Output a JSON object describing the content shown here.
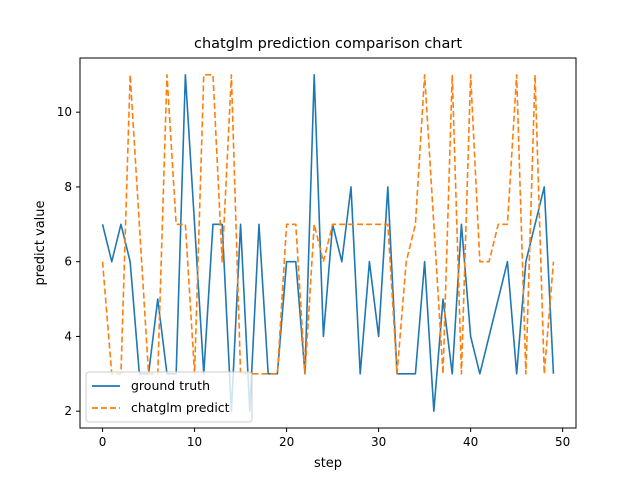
{
  "chart_data": {
    "type": "line",
    "title": "chatglm prediction comparison chart",
    "xlabel": "step",
    "ylabel": "predict value",
    "xlim": [
      -2.45,
      51.45
    ],
    "ylim": [
      1.55,
      11.45
    ],
    "xticks": [
      0,
      10,
      20,
      30,
      40,
      50
    ],
    "yticks": [
      2,
      4,
      6,
      8,
      10
    ],
    "grid": false,
    "legend_placement": "lower-left",
    "x": [
      0,
      1,
      2,
      3,
      4,
      5,
      6,
      7,
      8,
      9,
      10,
      11,
      12,
      13,
      14,
      15,
      16,
      17,
      18,
      19,
      20,
      21,
      22,
      23,
      24,
      25,
      26,
      27,
      28,
      29,
      30,
      31,
      32,
      33,
      34,
      35,
      36,
      37,
      38,
      39,
      40,
      41,
      42,
      43,
      44,
      45,
      46,
      47,
      48,
      49
    ],
    "series": [
      {
        "name": "ground truth",
        "color": "#1f77b4",
        "style": "solid",
        "values": [
          7,
          6,
          7,
          6,
          3,
          3,
          5,
          3,
          3,
          11,
          7,
          3,
          7,
          7,
          2,
          7,
          2,
          7,
          3,
          3,
          6,
          6,
          3,
          11,
          4,
          7,
          6,
          8,
          3,
          6,
          4,
          8,
          3,
          3,
          3,
          6,
          2,
          5,
          3,
          7,
          4,
          3,
          4,
          5,
          6,
          3,
          6,
          7,
          8,
          3
        ]
      },
      {
        "name": "chatglm predict",
        "color": "#ff7f0e",
        "style": "dashed",
        "values": [
          6,
          3,
          3,
          11,
          7,
          3,
          3,
          11,
          7,
          7,
          3,
          11,
          11,
          6,
          11,
          3,
          3,
          3,
          3,
          3,
          7,
          7,
          3,
          7,
          6,
          7,
          7,
          7,
          7,
          7,
          7,
          7,
          3,
          6,
          7,
          11,
          7,
          3,
          11,
          3,
          11,
          6,
          6,
          7,
          7,
          11,
          3,
          11,
          3,
          6
        ]
      }
    ]
  }
}
